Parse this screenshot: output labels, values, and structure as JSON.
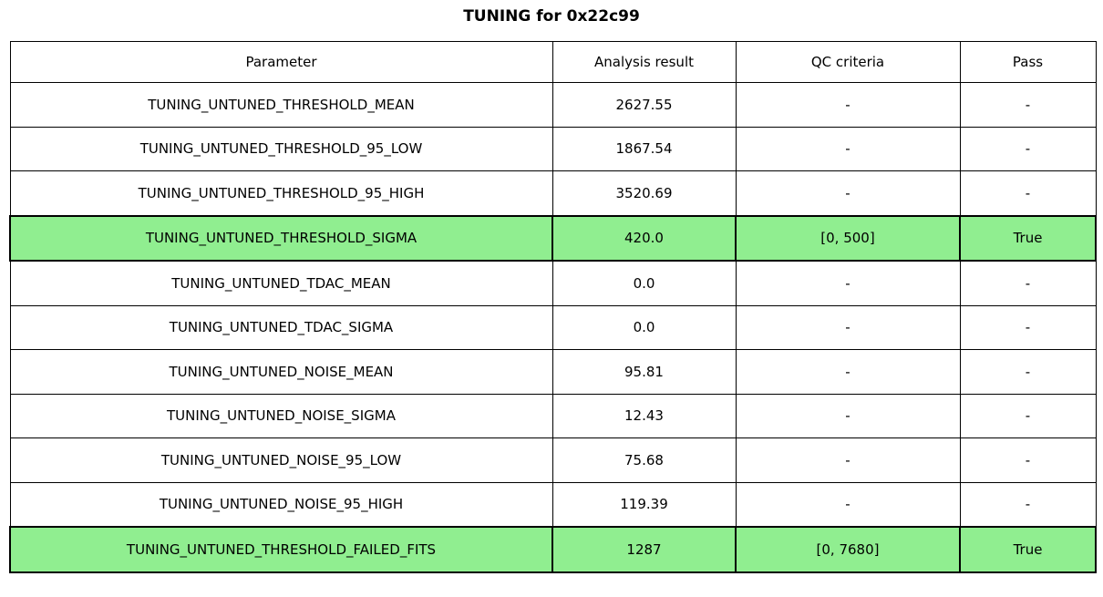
{
  "title": "TUNING for 0x22c99",
  "highlight_color": "#90ee90",
  "chart_data": {
    "type": "table",
    "title": "TUNING for 0x22c99",
    "columns": [
      "Parameter",
      "Analysis result",
      "QC criteria",
      "Pass"
    ],
    "rows": [
      {
        "parameter": "TUNING_UNTUNED_THRESHOLD_MEAN",
        "analysis_result": "2627.55",
        "qc_criteria": "-",
        "pass": "-",
        "highlighted": false
      },
      {
        "parameter": "TUNING_UNTUNED_THRESHOLD_95_LOW",
        "analysis_result": "1867.54",
        "qc_criteria": "-",
        "pass": "-",
        "highlighted": false
      },
      {
        "parameter": "TUNING_UNTUNED_THRESHOLD_95_HIGH",
        "analysis_result": "3520.69",
        "qc_criteria": "-",
        "pass": "-",
        "highlighted": false
      },
      {
        "parameter": "TUNING_UNTUNED_THRESHOLD_SIGMA",
        "analysis_result": "420.0",
        "qc_criteria": "[0, 500]",
        "pass": "True",
        "highlighted": true
      },
      {
        "parameter": "TUNING_UNTUNED_TDAC_MEAN",
        "analysis_result": "0.0",
        "qc_criteria": "-",
        "pass": "-",
        "highlighted": false
      },
      {
        "parameter": "TUNING_UNTUNED_TDAC_SIGMA",
        "analysis_result": "0.0",
        "qc_criteria": "-",
        "pass": "-",
        "highlighted": false
      },
      {
        "parameter": "TUNING_UNTUNED_NOISE_MEAN",
        "analysis_result": "95.81",
        "qc_criteria": "-",
        "pass": "-",
        "highlighted": false
      },
      {
        "parameter": "TUNING_UNTUNED_NOISE_SIGMA",
        "analysis_result": "12.43",
        "qc_criteria": "-",
        "pass": "-",
        "highlighted": false
      },
      {
        "parameter": "TUNING_UNTUNED_NOISE_95_LOW",
        "analysis_result": "75.68",
        "qc_criteria": "-",
        "pass": "-",
        "highlighted": false
      },
      {
        "parameter": "TUNING_UNTUNED_NOISE_95_HIGH",
        "analysis_result": "119.39",
        "qc_criteria": "-",
        "pass": "-",
        "highlighted": false
      },
      {
        "parameter": "TUNING_UNTUNED_THRESHOLD_FAILED_FITS",
        "analysis_result": "1287",
        "qc_criteria": "[0, 7680]",
        "pass": "True",
        "highlighted": true
      }
    ]
  }
}
